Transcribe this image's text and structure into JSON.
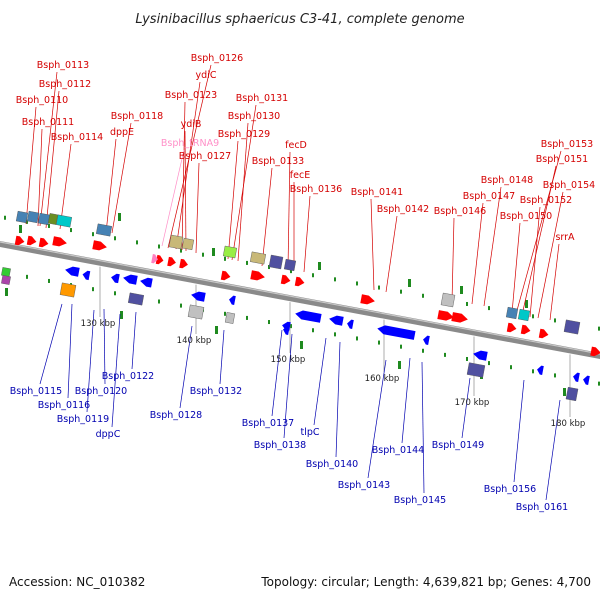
{
  "title": "Lysinibacillus sphaericus C3-41, complete genome",
  "footer": {
    "accession": "Accession: NC_010382",
    "summary": "Topology: circular; Length: 4,639,821 bp; Genes: 4,700"
  },
  "colors": {
    "forward_cds": "#ff0000",
    "reverse_cds": "#0000ff",
    "forward_label": "#d40000",
    "reverse_label": "#0000b0",
    "trna_label": "#ff90c8",
    "backbone": "#8a8a8a",
    "dot": "#1f8a1f"
  },
  "ticks": [
    "130 kbp",
    "140 kbp",
    "150 kbp",
    "160 kbp",
    "170 kbp",
    "180 kbp"
  ],
  "labels_top": [
    "Bsph_0113",
    "Bsph_0112",
    "Bsph_0110",
    "Bsph_0111",
    "Bsph_0114",
    "Bsph_0118",
    "dppE",
    "Bsph_0126",
    "ydiC",
    "Bsph_0123",
    "ydiB",
    "Bsph_tRNA9",
    "Bsph_0127",
    "Bsph_0131",
    "Bsph_0130",
    "Bsph_0129",
    "fecD",
    "Bsph_0133",
    "fecE",
    "Bsph_0136",
    "Bsph_0141",
    "Bsph_0142",
    "Bsph_0146",
    "Bsph_0147",
    "Bsph_0148",
    "Bsph_0153",
    "Bsph_0151",
    "Bsph_0154",
    "Bsph_0152",
    "Bsph_0150",
    "srrA"
  ],
  "labels_bottom": [
    "Bsph_0115",
    "Bsph_0116",
    "Bsph_0120",
    "Bsph_0119",
    "dppC",
    "Bsph_0122",
    "Bsph_0128",
    "Bsph_0132",
    "Bsph_0137",
    "Bsph_0138",
    "tlpC",
    "Bsph_0140",
    "Bsph_0143",
    "Bsph_0144",
    "Bsph_0145",
    "Bsph_0149",
    "Bsph_0156",
    "Bsph_0161"
  ]
}
